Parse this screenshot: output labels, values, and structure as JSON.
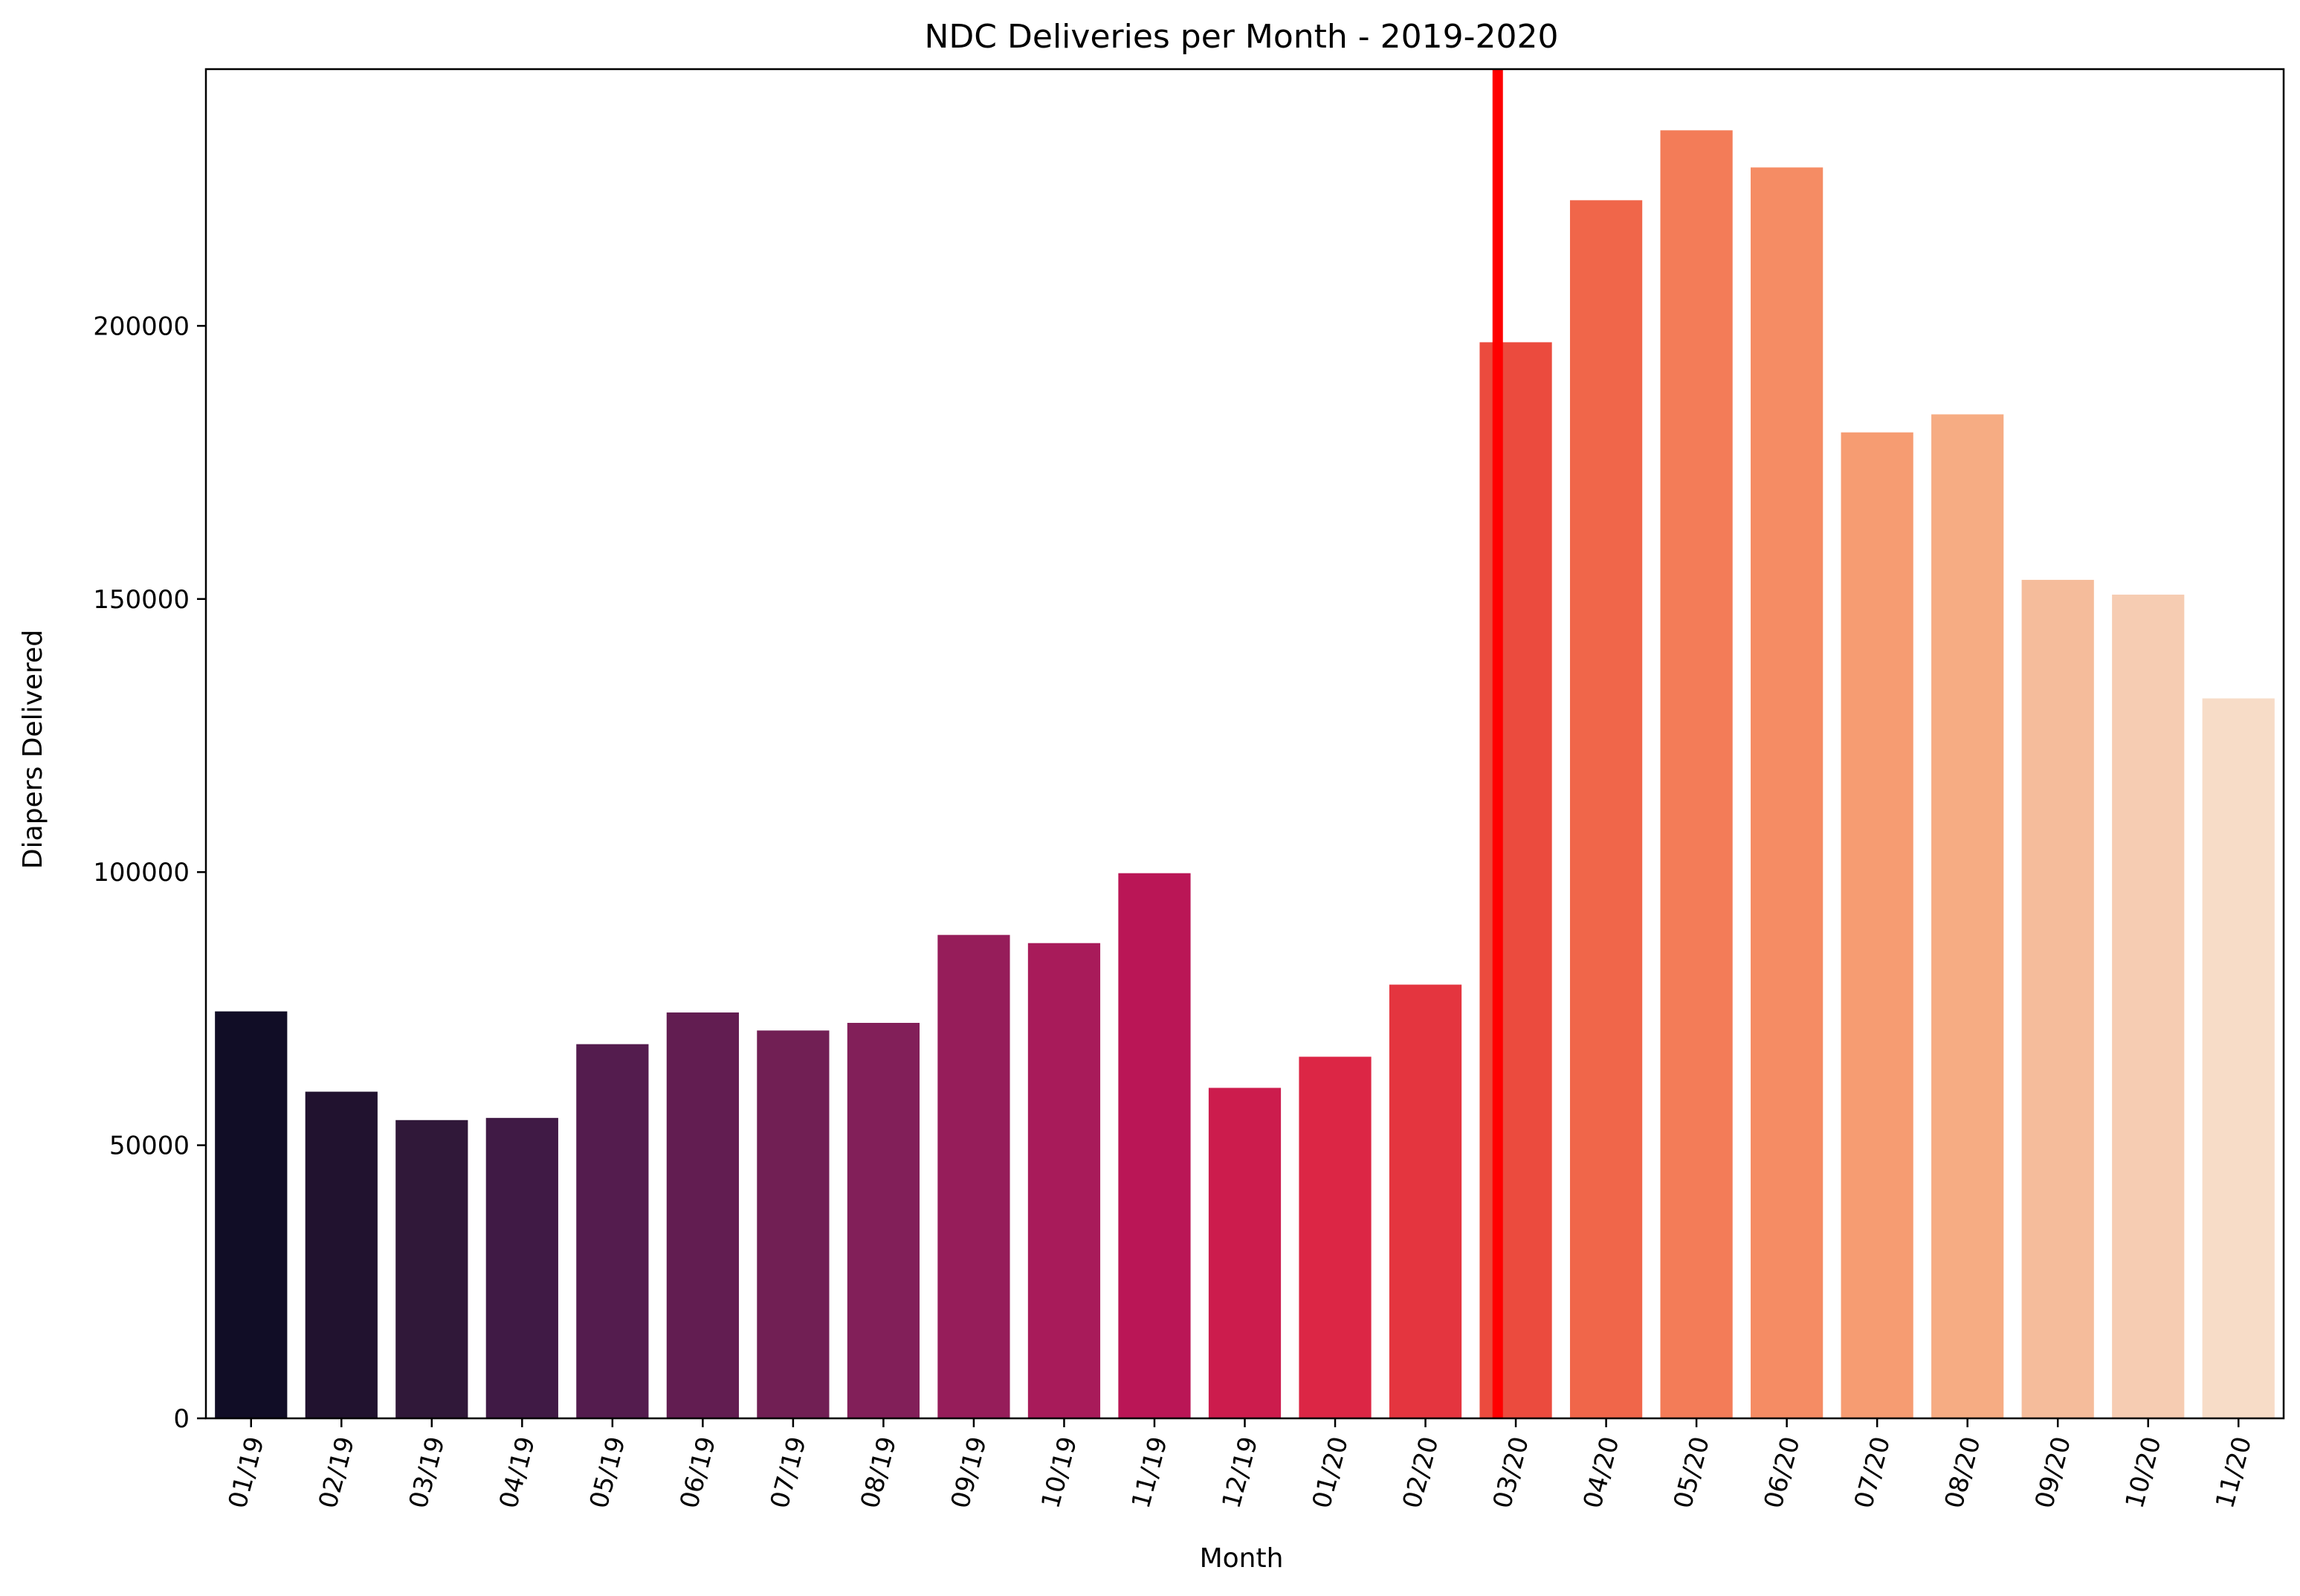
{
  "chart_data": {
    "type": "bar",
    "title": "NDC Deliveries per Month - 2019-2020",
    "xlabel": "Month",
    "ylabel": "Diapers Delivered",
    "categories": [
      "01/19",
      "02/19",
      "03/19",
      "04/19",
      "05/19",
      "06/19",
      "07/19",
      "08/19",
      "09/19",
      "10/19",
      "11/19",
      "12/19",
      "01/20",
      "02/20",
      "03/20",
      "04/20",
      "05/20",
      "06/20",
      "07/20",
      "08/20",
      "09/20",
      "10/20",
      "11/20"
    ],
    "values": [
      74500,
      59800,
      54600,
      55000,
      68500,
      74300,
      71000,
      72400,
      88500,
      87000,
      99800,
      60500,
      66200,
      79400,
      197000,
      223000,
      235800,
      229000,
      180500,
      183800,
      153500,
      150800,
      131800
    ],
    "colors": [
      "#110d26",
      "#21122f",
      "#301839",
      "#401a45",
      "#541c4e",
      "#621d51",
      "#711f54",
      "#821f59",
      "#961d5a",
      "#a81b5a",
      "#ba1656",
      "#cc1c4d",
      "#dc2645",
      "#e4353f",
      "#eb4b3e",
      "#f0664a",
      "#f37c58",
      "#f58c64",
      "#f69c72",
      "#f6ac83",
      "#f5bc9b",
      "#f6ccb2",
      "#f7dcc7"
    ],
    "yticks": [
      0,
      50000,
      100000,
      150000,
      200000
    ],
    "ylim": [
      0,
      247000
    ],
    "vline": {
      "x_position": "between 02/20 and 03/20",
      "x_index": 14.3,
      "color": "#ff0000"
    },
    "grid": false,
    "legend": "none"
  }
}
